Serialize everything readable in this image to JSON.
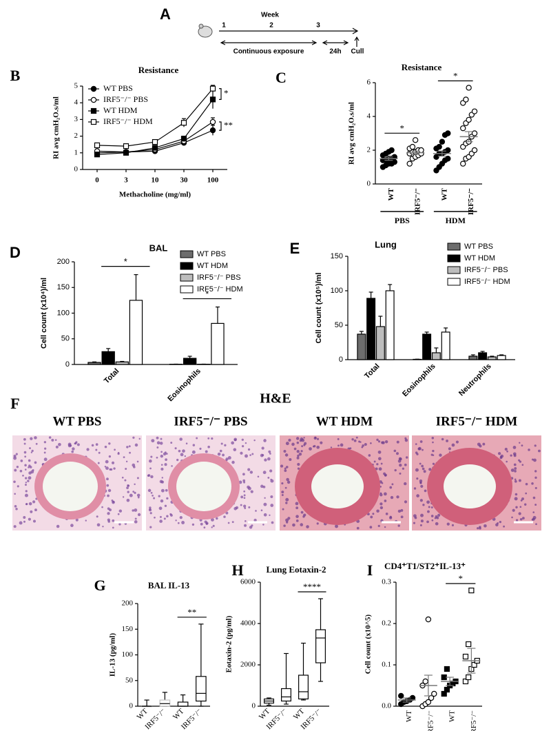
{
  "timeline": {
    "panel": "A",
    "week_label": "Week",
    "weeks": [
      "1",
      "2",
      "3"
    ],
    "exposure": "Continuous exposure",
    "rest": "24h",
    "end": "Cull"
  },
  "histology": {
    "panel": "F",
    "title": "H&E",
    "images": [
      {
        "label": "WT PBS"
      },
      {
        "label": "IRF5⁻/⁻ PBS"
      },
      {
        "label": "WT HDM"
      },
      {
        "label": "IRF5⁻/⁻ HDM"
      }
    ]
  },
  "chart_data": [
    {
      "type": "line",
      "panel": "B",
      "title": "Resistance",
      "ylabel": "RI avg cmH₂O.s/ml",
      "xlabel": "Methacholine (mg/ml)",
      "categories": [
        "0",
        "3",
        "10",
        "30",
        "100"
      ],
      "ylim": [
        0,
        5
      ],
      "yticks": [
        0,
        1,
        2,
        3,
        4,
        5
      ],
      "series": [
        {
          "name": "WT PBS",
          "marker": "circle-filled",
          "color": "#000000",
          "values": [
            1.0,
            1.05,
            1.1,
            1.6,
            2.35
          ],
          "errors": [
            0.05,
            0.05,
            0.08,
            0.15,
            0.3
          ]
        },
        {
          "name": "IRF5⁻/⁻ PBS",
          "marker": "circle-open",
          "color": "#000000",
          "values": [
            1.1,
            1.05,
            1.2,
            1.7,
            2.85
          ],
          "errors": [
            0.05,
            0.05,
            0.08,
            0.15,
            0.25
          ]
        },
        {
          "name": "WT HDM",
          "marker": "square-filled",
          "color": "#000000",
          "values": [
            0.9,
            1.0,
            1.3,
            1.85,
            4.2
          ],
          "errors": [
            0.05,
            0.05,
            0.1,
            0.15,
            0.55
          ]
        },
        {
          "name": "IRF5⁻/⁻ HDM",
          "marker": "square-open",
          "color": "#000000",
          "values": [
            1.45,
            1.4,
            1.65,
            2.8,
            4.85
          ],
          "errors": [
            0.05,
            0.05,
            0.08,
            0.25,
            0.2
          ]
        }
      ],
      "annotations": [
        {
          "text": "*",
          "series": [
            2,
            3
          ]
        },
        {
          "text": "**",
          "series": [
            0,
            1
          ]
        }
      ]
    },
    {
      "type": "dot",
      "panel": "C",
      "title": "Resistance",
      "ylabel": "RI avg cmH₂O.s/ml",
      "categories": [
        "WT",
        "IRF5⁻/⁻",
        "WT",
        "IRF5⁻/⁻"
      ],
      "groups": [
        "PBS",
        "HDM"
      ],
      "ylim": [
        0,
        6
      ],
      "yticks": [
        0,
        2,
        4,
        6
      ],
      "markers": [
        "circle-filled",
        "circle-open",
        "circle-filled",
        "circle-open"
      ],
      "points": [
        [
          1.0,
          1.1,
          1.2,
          1.2,
          1.3,
          1.4,
          1.4,
          1.5,
          1.5,
          1.6,
          1.7,
          1.8,
          1.9,
          2.0
        ],
        [
          1.2,
          1.5,
          1.6,
          1.7,
          1.8,
          1.8,
          1.9,
          1.9,
          2.0,
          2.0,
          2.1,
          2.2,
          2.6
        ],
        [
          0.8,
          1.0,
          1.2,
          1.4,
          1.5,
          1.6,
          1.8,
          1.8,
          1.9,
          2.0,
          2.1,
          2.2,
          2.5,
          2.9,
          3.0
        ],
        [
          1.2,
          1.5,
          1.6,
          1.8,
          2.0,
          2.2,
          2.4,
          2.5,
          2.8,
          3.0,
          3.3,
          3.6,
          3.8,
          4.1,
          4.3,
          4.8,
          5.0,
          5.7
        ]
      ],
      "means": [
        1.5,
        1.85,
        1.8,
        2.8
      ],
      "sems": [
        0.1,
        0.1,
        0.15,
        0.3
      ],
      "annotations": [
        {
          "text": "*",
          "between": [
            0,
            1
          ]
        },
        {
          "text": "*",
          "between": [
            2,
            3
          ]
        }
      ]
    },
    {
      "type": "bar",
      "panel": "D",
      "title": "BAL",
      "ylabel": "Cell count (x10⁴)/ml",
      "categories": [
        "Total",
        "Eosinophils"
      ],
      "ylim": [
        0,
        200
      ],
      "yticks": [
        0,
        50,
        100,
        150,
        200
      ],
      "legend": "upper right",
      "series": [
        {
          "name": "WT PBS",
          "color": "#6d6d6d",
          "values": [
            4,
            0.5
          ],
          "errors": [
            1,
            0.2
          ]
        },
        {
          "name": "WT HDM",
          "color": "#000000",
          "values": [
            25,
            12
          ],
          "errors": [
            6,
            4
          ]
        },
        {
          "name": "IRF5⁻/⁻ PBS",
          "color": "#bdbdbd",
          "values": [
            5,
            0.5
          ],
          "errors": [
            1,
            0.2
          ]
        },
        {
          "name": "IRF5⁻/⁻ HDM",
          "color": "#ffffff",
          "values": [
            125,
            80
          ],
          "errors": [
            50,
            32
          ]
        }
      ],
      "annotations": [
        {
          "text": "*",
          "category": 0,
          "series": [
            1,
            3
          ]
        },
        {
          "text": "*",
          "category": 1,
          "series": [
            1,
            3
          ]
        }
      ]
    },
    {
      "type": "bar",
      "panel": "E",
      "title": "Lung",
      "ylabel": "Cell count (x10⁵)/ml",
      "categories": [
        "Total",
        "Eosinophils",
        "Neutrophils"
      ],
      "ylim": [
        0,
        150
      ],
      "yticks": [
        0,
        50,
        100,
        150
      ],
      "legend": "upper right",
      "series": [
        {
          "name": "WT PBS",
          "color": "#6d6d6d",
          "values": [
            37,
            0.5,
            5
          ],
          "errors": [
            4,
            0.2,
            2
          ]
        },
        {
          "name": "WT HDM",
          "color": "#000000",
          "values": [
            89,
            37,
            10
          ],
          "errors": [
            9,
            3,
            2
          ]
        },
        {
          "name": "IRF5⁻/⁻ PBS",
          "color": "#bdbdbd",
          "values": [
            48,
            10,
            4
          ],
          "errors": [
            15,
            7,
            1
          ]
        },
        {
          "name": "IRF5⁻/⁻ HDM",
          "color": "#ffffff",
          "values": [
            100,
            40,
            6
          ],
          "errors": [
            9,
            6,
            1
          ]
        }
      ]
    },
    {
      "type": "box",
      "panel": "G",
      "title": "BAL IL-13",
      "ylabel": "IL-13 (pg/ml)",
      "categories": [
        "WT",
        "IRF5⁻/⁻",
        "WT",
        "IRF5⁻/⁻"
      ],
      "groups": [
        "PBS",
        "HDM"
      ],
      "ylim": [
        0,
        200
      ],
      "yticks": [
        0,
        50,
        100,
        150,
        200
      ],
      "colors": [
        "#808080",
        "#c0c0c0",
        "#000000",
        "#000000"
      ],
      "boxes": [
        {
          "min": 0,
          "q1": 0,
          "median": 0,
          "q3": 0,
          "max": 12
        },
        {
          "min": 0,
          "q1": 0,
          "median": 5,
          "q3": 12,
          "max": 27
        },
        {
          "min": 0,
          "q1": 0,
          "median": 0,
          "q3": 8,
          "max": 22
        },
        {
          "min": 0,
          "q1": 10,
          "median": 25,
          "q3": 58,
          "max": 160
        }
      ],
      "annotations": [
        {
          "text": "**",
          "between": [
            2,
            3
          ]
        }
      ]
    },
    {
      "type": "box",
      "panel": "H",
      "title": "Lung Eotaxin-2",
      "ylabel": "Eotaxin-2 (pg/ml)",
      "categories": [
        "WT",
        "IRF5⁻/⁻",
        "WT",
        "IRF5⁻/⁻"
      ],
      "groups": [
        "PBS",
        "HDM"
      ],
      "ylim": [
        0,
        6000
      ],
      "yticks": [
        0,
        2000,
        4000,
        6000
      ],
      "colors": [
        "#000000",
        "#000000",
        "#000000",
        "#000000"
      ],
      "boxes": [
        {
          "min": 50,
          "q1": 150,
          "median": 250,
          "q3": 350,
          "max": 400
        },
        {
          "min": 100,
          "q1": 250,
          "median": 450,
          "q3": 850,
          "max": 2550
        },
        {
          "min": 300,
          "q1": 350,
          "median": 700,
          "q3": 1500,
          "max": 3050
        },
        {
          "min": 1200,
          "q1": 2100,
          "median": 3300,
          "q3": 3700,
          "max": 5200
        }
      ],
      "annotations": [
        {
          "text": "****",
          "between": [
            2,
            3
          ]
        }
      ]
    },
    {
      "type": "dot",
      "panel": "I",
      "title": "CD4⁺T1/ST2⁺IL-13⁺",
      "ylabel": "Cell count (x10^5)",
      "categories": [
        "WT",
        "IRF5⁻/⁻",
        "WT",
        "IRF5⁻/⁻"
      ],
      "groups": [
        "PBS",
        "HDM"
      ],
      "ylim": [
        0,
        0.3
      ],
      "yticks": [
        {
          "value": 0,
          "label": "0.0"
        },
        0.1,
        0.2,
        0.3
      ],
      "markers": [
        "circle-filled",
        "circle-open",
        "square-filled",
        "square-open"
      ],
      "points": [
        [
          0.005,
          0.01,
          0.012,
          0.015,
          0.02,
          0.025
        ],
        [
          0.0,
          0.005,
          0.01,
          0.02,
          0.03,
          0.05,
          0.06,
          0.21
        ],
        [
          0.03,
          0.04,
          0.05,
          0.055,
          0.06,
          0.07,
          0.09
        ],
        [
          0.06,
          0.07,
          0.09,
          0.1,
          0.11,
          0.12,
          0.15,
          0.28
        ]
      ],
      "means": [
        0.015,
        0.05,
        0.06,
        0.11
      ],
      "sems": [
        0.005,
        0.025,
        0.01,
        0.03
      ],
      "annotations": [
        {
          "text": "*",
          "between": [
            2,
            3
          ]
        }
      ]
    }
  ]
}
